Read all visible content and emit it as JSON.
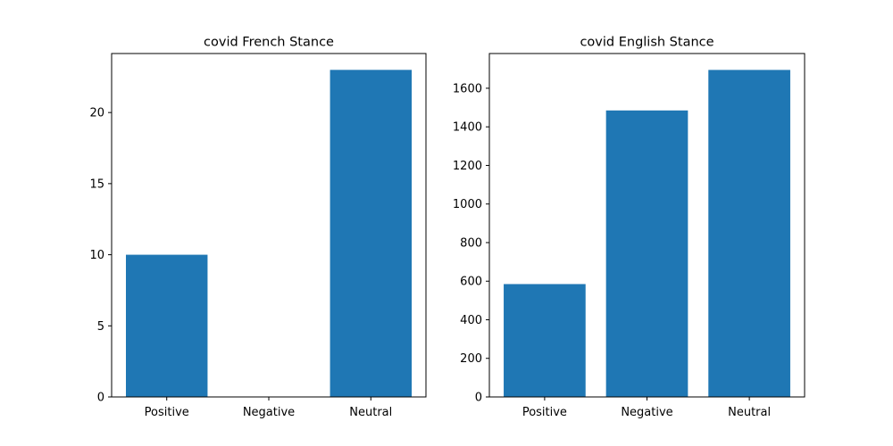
{
  "colors": {
    "bar": "#1f77b4"
  },
  "chart_data": [
    {
      "type": "bar",
      "title": "covid French Stance",
      "categories": [
        "Positive",
        "Negative",
        "Neutral"
      ],
      "values": [
        10,
        0,
        23
      ],
      "xlabel": "",
      "ylabel": "",
      "ylim": [
        0,
        24.15
      ],
      "yticks": [
        0,
        5,
        10,
        15,
        20
      ],
      "grid": false
    },
    {
      "type": "bar",
      "title": "covid English Stance",
      "categories": [
        "Positive",
        "Negative",
        "Neutral"
      ],
      "values": [
        585,
        1485,
        1695
      ],
      "xlabel": "",
      "ylabel": "",
      "ylim": [
        0,
        1780
      ],
      "yticks": [
        0,
        200,
        400,
        600,
        800,
        1000,
        1200,
        1400,
        1600
      ],
      "grid": false
    }
  ]
}
